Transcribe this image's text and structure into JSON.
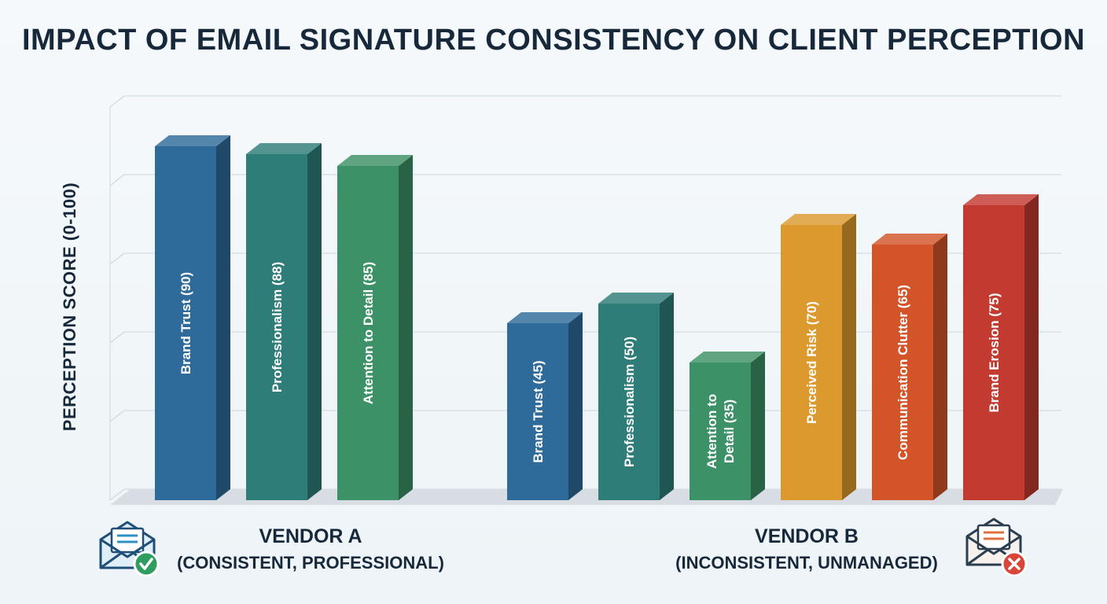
{
  "chart_data": {
    "type": "bar",
    "title": "IMPACT OF EMAIL SIGNATURE CONSISTENCY ON CLIENT PERCEPTION",
    "ylabel": "PERCEPTION SCORE (0-100)",
    "xlabel": "",
    "ylim": [
      0,
      100
    ],
    "grid": true,
    "groups": [
      {
        "name": "VENDOR A",
        "subtitle": "(CONSISTENT, PROFESSIONAL)",
        "icon": "email-check-icon",
        "bars": [
          {
            "label": "Brand Trust (90)",
            "value": 90,
            "color": "#2f6b9a"
          },
          {
            "label": "Professionalism (88)",
            "value": 88,
            "color": "#2e7d78"
          },
          {
            "label": "Attention to Detail (85)",
            "value": 85,
            "color": "#3d9166"
          }
        ]
      },
      {
        "name": "VENDOR B",
        "subtitle": "(INCONSISTENT, UNMANAGED)",
        "icon": "email-error-icon",
        "bars": [
          {
            "label": "Brand Trust (45)",
            "value": 45,
            "color": "#2f6b9a"
          },
          {
            "label": "Professionalism (50)",
            "value": 50,
            "color": "#2e7d78"
          },
          {
            "label": "Attention to Detail (35)",
            "value": 35,
            "color": "#3d9166",
            "lines": [
              "Attention to",
              "Detail (35)"
            ]
          },
          {
            "label": "Perceived Risk (70)",
            "value": 70,
            "color": "#dc9a2e"
          },
          {
            "label": "Communication Clutter (65)",
            "value": 65,
            "color": "#d4542a"
          },
          {
            "label": "Brand Erosion (75)",
            "value": 75,
            "color": "#c23a30"
          }
        ]
      }
    ]
  }
}
